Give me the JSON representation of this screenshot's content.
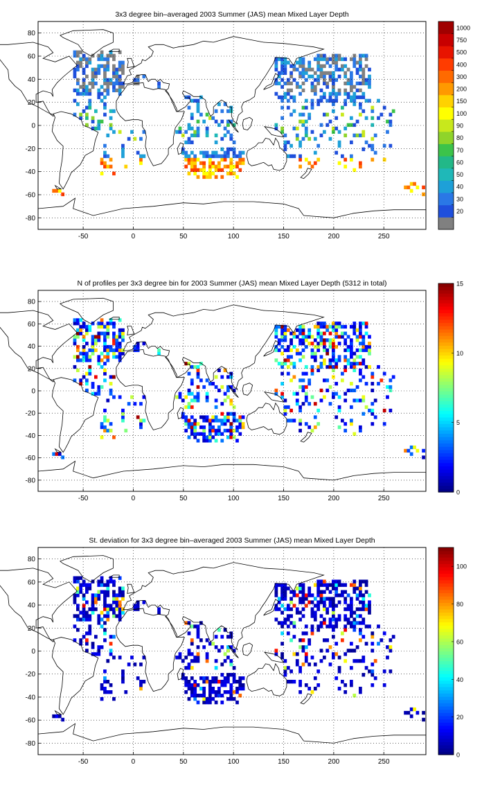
{
  "panels": [
    {
      "title": "3x3 degree bin–averaged 2003 Summer (JAS) mean Mixed Layer Depth",
      "x_ticks": [
        "-50",
        "0",
        "50",
        "100",
        "150",
        "200",
        "250"
      ],
      "x_tick_values": [
        -50,
        0,
        50,
        100,
        150,
        200,
        250
      ],
      "y_ticks": [
        "80",
        "60",
        "40",
        "20",
        "0",
        "-20",
        "-40",
        "-60",
        "-80"
      ],
      "y_tick_values": [
        80,
        60,
        40,
        20,
        0,
        -20,
        -40,
        -60,
        -80
      ],
      "colorbar": {
        "type": "discrete",
        "labels": [
          "20",
          "30",
          "40",
          "50",
          "60",
          "70",
          "80",
          "90",
          "100",
          "150",
          "200",
          "300",
          "400",
          "500",
          "750",
          "1000"
        ],
        "colors": [
          "#808080",
          "#1f4fdc",
          "#2a78e6",
          "#1ea0d8",
          "#1fb8b8",
          "#22b888",
          "#3cc34a",
          "#8fd42a",
          "#c8e81c",
          "#ffff00",
          "#ffd200",
          "#ff9900",
          "#ff6a00",
          "#ff3c00",
          "#e81400",
          "#c80000",
          "#a00000"
        ]
      }
    },
    {
      "title": "N of profiles per 3x3 degree bin for 2003 Summer (JAS) mean Mixed Layer Depth  (5312 in total)",
      "x_ticks": [
        "-50",
        "0",
        "50",
        "100",
        "150",
        "200",
        "250"
      ],
      "x_tick_values": [
        -50,
        0,
        50,
        100,
        150,
        200,
        250
      ],
      "y_ticks": [
        "80",
        "60",
        "40",
        "20",
        "0",
        "-20",
        "-40",
        "-60",
        "-80"
      ],
      "y_tick_values": [
        80,
        60,
        40,
        20,
        0,
        -20,
        -40,
        -60,
        -80
      ],
      "colorbar": {
        "type": "continuous",
        "min": 0,
        "max": 15,
        "labels": [
          "15",
          "10",
          "5",
          "0"
        ],
        "label_values": [
          15,
          10,
          5,
          0
        ]
      }
    },
    {
      "title": "St. deviation for 3x3 degree bin–averaged 2003 Summer (JAS) mean Mixed Layer Depth",
      "x_ticks": [
        "-50",
        "0",
        "50",
        "100",
        "150",
        "200",
        "250"
      ],
      "x_tick_values": [
        -50,
        0,
        50,
        100,
        150,
        200,
        250
      ],
      "y_ticks": [
        "80",
        "60",
        "40",
        "20",
        "0",
        "-20",
        "-40",
        "-60",
        "-80"
      ],
      "y_tick_values": [
        80,
        60,
        40,
        20,
        0,
        -20,
        -40,
        -60,
        -80
      ],
      "colorbar": {
        "type": "continuous",
        "min": 0,
        "max": 110,
        "labels": [
          "100",
          "80",
          "60",
          "40",
          "20",
          "0"
        ],
        "label_values": [
          100,
          80,
          60,
          40,
          20,
          0
        ]
      }
    }
  ],
  "map": {
    "lon_range": [
      -95,
      292
    ],
    "lat_range": [
      -90,
      90
    ],
    "grid": true,
    "grid_style": "dotted",
    "bin_size_deg": 3
  }
}
